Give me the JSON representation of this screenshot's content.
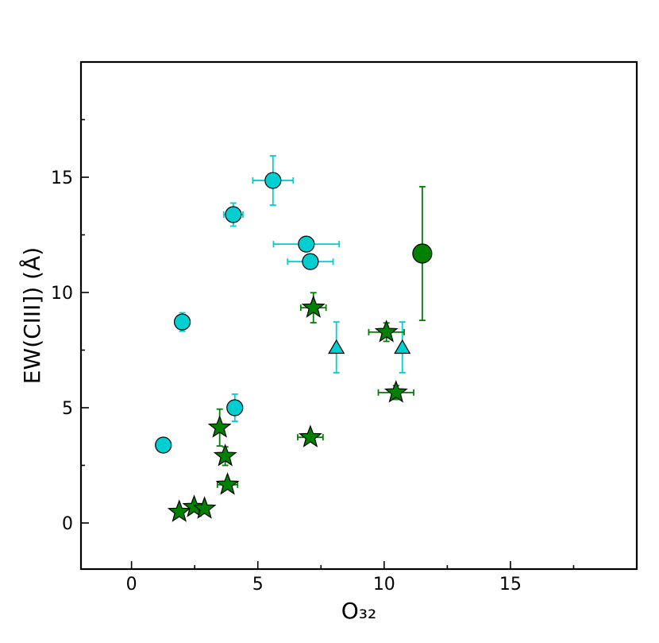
{
  "chart_data": {
    "type": "scatter",
    "xlabel": "O₃₂",
    "ylabel": "EW(CIII]) (Å)",
    "xlim": [
      -2,
      20
    ],
    "ylim": [
      -2,
      20
    ],
    "xticks": [
      0,
      5,
      10,
      15
    ],
    "yticks": [
      0,
      5,
      10,
      15
    ],
    "xminorticks": [
      2.5,
      7.5,
      12.5,
      17.5
    ],
    "yminorticks": [
      2.5,
      7.5,
      12.5,
      17.5
    ],
    "series": [
      {
        "marker": "circle",
        "color": "#00ced1",
        "size": 10,
        "x": [
          1.26,
          2.01,
          4.03,
          4.09,
          5.6,
          6.92,
          7.08
        ],
        "y": [
          3.38,
          8.72,
          13.38,
          5.0,
          14.86,
          12.1,
          11.34
        ],
        "xerr": [
          null,
          null,
          0.38,
          null,
          0.8,
          1.3,
          0.9
        ],
        "yerr": [
          null,
          0.4,
          0.5,
          0.59,
          1.07,
          null,
          null
        ]
      },
      {
        "marker": "triangle",
        "color": "#00ced1",
        "size": 11,
        "x": [
          8.11,
          10.72
        ],
        "y": [
          7.62,
          7.62
        ],
        "xerr": [
          null,
          null
        ],
        "yerr": [
          1.1,
          1.1
        ]
      },
      {
        "marker": "star",
        "color": "#008000",
        "size": 14,
        "x": [
          1.89,
          2.48,
          2.89,
          3.49,
          3.71,
          3.8,
          7.08,
          7.2,
          10.09,
          10.47
        ],
        "y": [
          0.48,
          0.69,
          0.62,
          4.14,
          2.9,
          1.66,
          3.72,
          9.34,
          8.28,
          5.66
        ],
        "xerr": [
          null,
          null,
          null,
          null,
          null,
          0.4,
          0.5,
          0.5,
          0.7,
          0.7
        ],
        "yerr": [
          null,
          null,
          null,
          0.8,
          0.4,
          null,
          null,
          0.65,
          0.4,
          0.3
        ]
      },
      {
        "marker": "circle",
        "color": "#008000",
        "size": 12,
        "x": [
          11.51
        ],
        "y": [
          11.69
        ],
        "xerr": [
          null
        ],
        "yerr": [
          2.9
        ]
      }
    ]
  }
}
